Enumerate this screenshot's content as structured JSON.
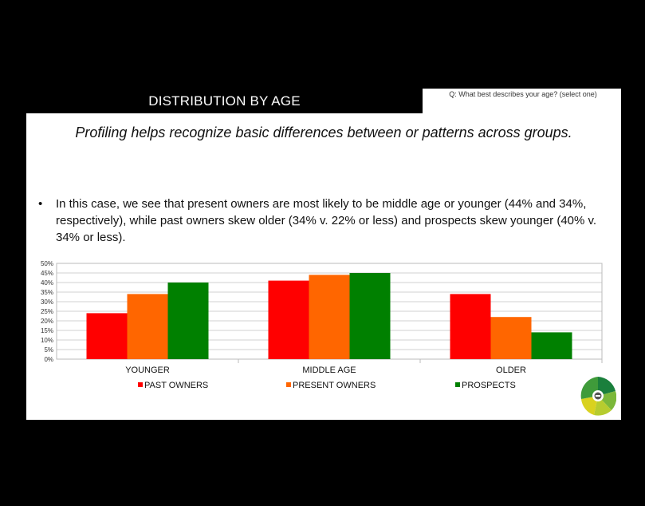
{
  "header": {
    "title": "DISTRIBUTION BY AGE",
    "question": "Q:  What best describes your age? (select one)"
  },
  "subtitle": "Profiling helps recognize basic differences between or patterns across groups.",
  "bullet": {
    "marker": "•",
    "text": "In this case, we see that present owners are most likely to be middle age or younger (44% and 34%, respectively), while past owners skew older (34% v. 22% or less) and prospects skew younger (40% v. 34% or less)."
  },
  "chart_data": {
    "type": "bar",
    "categories": [
      "YOUNGER",
      "MIDDLE AGE",
      "OLDER"
    ],
    "series": [
      {
        "name": "PAST OWNERS",
        "color": "#ff0000",
        "values": [
          24,
          41,
          34
        ]
      },
      {
        "name": "PRESENT OWNERS",
        "color": "#ff6600",
        "values": [
          34,
          44,
          22
        ]
      },
      {
        "name": "PROSPECTS",
        "color": "#008000",
        "values": [
          40,
          45,
          14
        ]
      }
    ],
    "ylim": [
      0,
      50
    ],
    "yticks": [
      "0%",
      "5%",
      "10%",
      "15%",
      "20%",
      "25%",
      "30%",
      "35%",
      "40%",
      "45%",
      "50%"
    ],
    "grid": true,
    "legend": "bottom"
  },
  "logo_icon": "brand-wheel-icon"
}
